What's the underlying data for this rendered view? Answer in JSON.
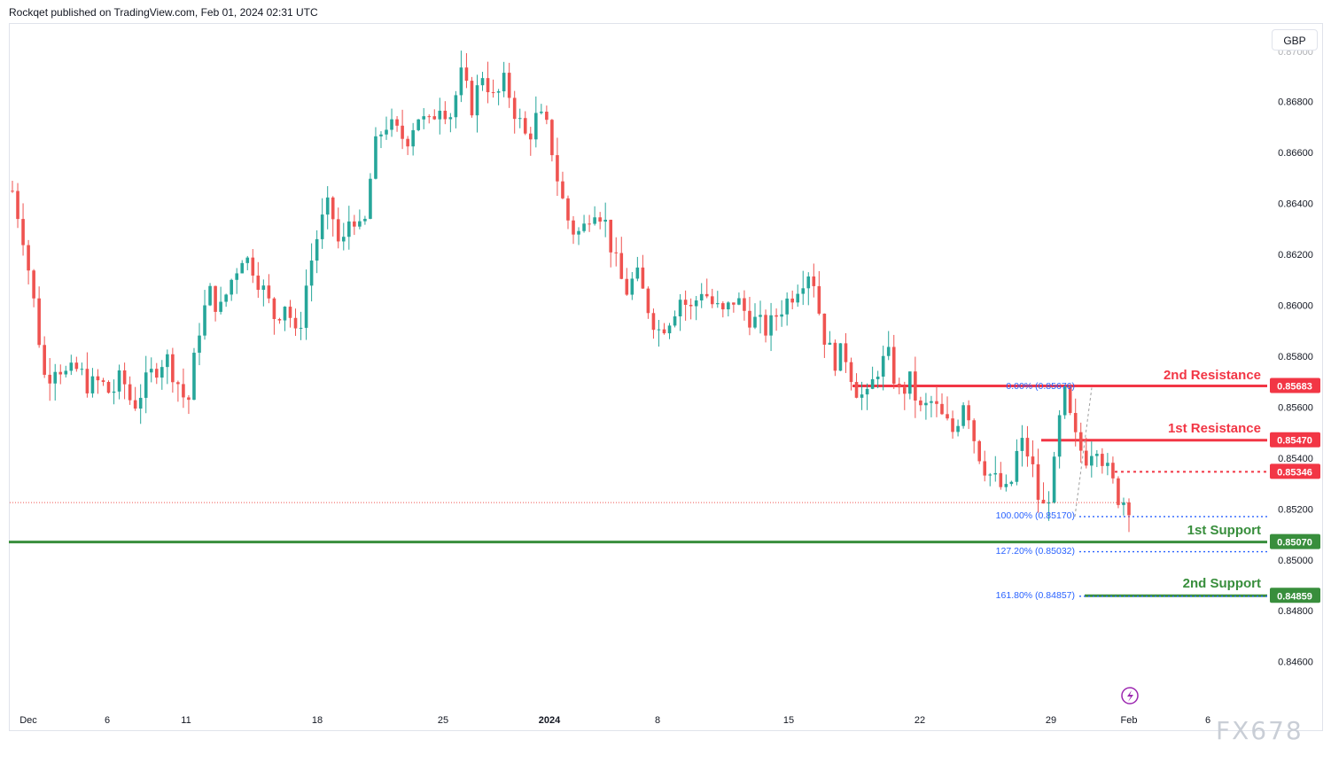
{
  "header": {
    "publisher_text": "Rockqet published on TradingView.com, Feb 01, 2024 02:31 UTC"
  },
  "currency_button": "GBP",
  "watermark": "FX678",
  "icons": {
    "event_icon": "lightning-bolt-icon"
  },
  "colors": {
    "up": "#26a69a",
    "down": "#ef5350",
    "resistance": "#f23645",
    "support": "#388e3c",
    "fib": "#2962ff"
  },
  "chart_data": {
    "type": "candlestick",
    "y_axis": {
      "ylim": [
        0.8453,
        0.8711
      ],
      "ticks": [
        "0.84600",
        "0.84800",
        "0.85000",
        "0.85200",
        "0.85400",
        "0.85600",
        "0.85800",
        "0.86000",
        "0.86200",
        "0.86400",
        "0.86600",
        "0.86800"
      ]
    },
    "x_axis": {
      "labels": [
        "Dec",
        "6",
        "11",
        "18",
        "25",
        "2024",
        "8",
        "15",
        "22",
        "29",
        "Feb",
        "6"
      ]
    },
    "price_levels": [
      {
        "label": "2nd Resistance",
        "value": "0.85683",
        "kind": "resistance"
      },
      {
        "label": "1st Resistance",
        "value": "0.85470",
        "kind": "resistance"
      },
      {
        "label": "",
        "value": "0.85346",
        "kind": "resistance-dotted"
      },
      {
        "label": "1st Support",
        "value": "0.85070",
        "kind": "support"
      },
      {
        "label": "2nd Support",
        "value": "0.84859",
        "kind": "support"
      }
    ],
    "fib_levels": [
      {
        "text": "0.00% (0.85676)",
        "value": 0.85676
      },
      {
        "text": "100.00% (0.85170)",
        "value": 0.8517
      },
      {
        "text": "127.20% (0.85032)",
        "value": 0.85032
      },
      {
        "text": "161.80% (0.84857)",
        "value": 0.84857
      }
    ],
    "current_price": 0.85225,
    "price_path": [
      0.8645,
      0.8627,
      0.86,
      0.857,
      0.8578,
      0.8572,
      0.8575,
      0.8568,
      0.857,
      0.8565,
      0.8572,
      0.856,
      0.8568,
      0.8575,
      0.858,
      0.8571,
      0.856,
      0.859,
      0.8605,
      0.8598,
      0.861,
      0.862,
      0.8615,
      0.8605,
      0.8595,
      0.8602,
      0.8585,
      0.8612,
      0.863,
      0.864,
      0.862,
      0.8638,
      0.8625,
      0.866,
      0.8672,
      0.8668,
      0.8665,
      0.8675,
      0.867,
      0.868,
      0.8675,
      0.869,
      0.8678,
      0.8692,
      0.868,
      0.8688,
      0.8675,
      0.8665,
      0.8675,
      0.8668,
      0.8645,
      0.863,
      0.8628,
      0.864,
      0.8635,
      0.8618,
      0.8605,
      0.8612,
      0.86,
      0.859,
      0.8595,
      0.8603,
      0.8598,
      0.8607,
      0.86,
      0.8596,
      0.8603,
      0.8597,
      0.8593,
      0.859,
      0.8598,
      0.8603,
      0.861,
      0.8615,
      0.859,
      0.8578,
      0.8582,
      0.8568,
      0.8562,
      0.8575,
      0.858,
      0.8565,
      0.857,
      0.8558,
      0.8562,
      0.8555,
      0.855,
      0.8565,
      0.8545,
      0.8535,
      0.853,
      0.8525,
      0.8547,
      0.854,
      0.8518,
      0.853,
      0.8567,
      0.8548,
      0.854,
      0.8547,
      0.8535,
      0.8525,
      0.8522
    ]
  }
}
